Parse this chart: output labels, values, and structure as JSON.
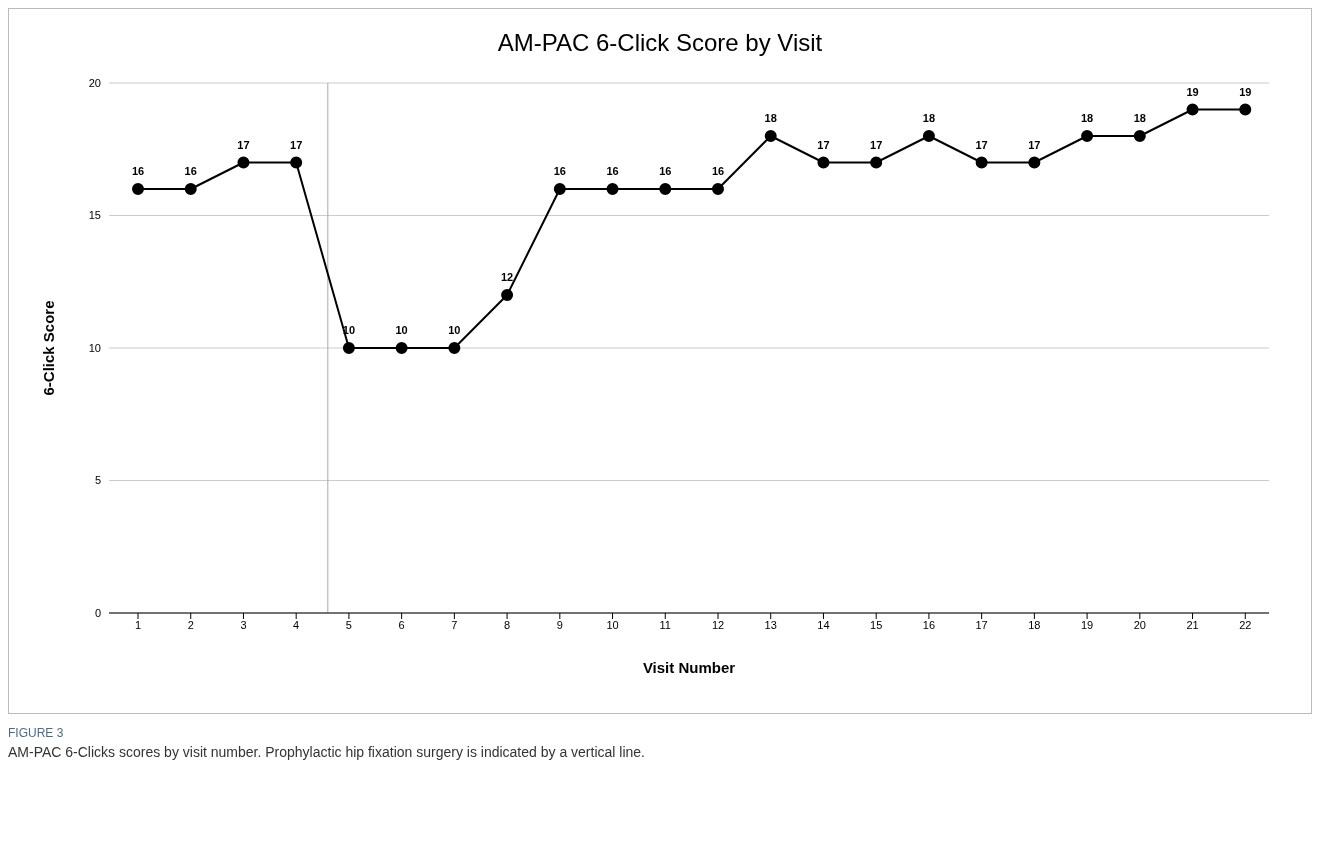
{
  "chart_data": {
    "type": "line",
    "title": "AM-PAC 6-Click Score by Visit",
    "xlabel": "Visit Number",
    "ylabel": "6-Click Score",
    "x": [
      1,
      2,
      3,
      4,
      5,
      6,
      7,
      8,
      9,
      10,
      11,
      12,
      13,
      14,
      15,
      16,
      17,
      18,
      19,
      20,
      21,
      22
    ],
    "series": [
      {
        "color": "#000000",
        "values": [
          16,
          16,
          17,
          17,
          10,
          10,
          10,
          12,
          16,
          16,
          16,
          16,
          18,
          17,
          17,
          18,
          17,
          17,
          18,
          18,
          19,
          19
        ]
      }
    ],
    "xlim": [
      0.45,
      22.45
    ],
    "xticks": [
      1,
      2,
      3,
      4,
      5,
      6,
      7,
      8,
      9,
      10,
      11,
      12,
      13,
      14,
      15,
      16,
      17,
      18,
      19,
      20,
      21,
      22
    ],
    "ylim": [
      0,
      20
    ],
    "yticks": [
      0,
      5,
      10,
      15,
      20
    ],
    "grid": "y",
    "marker": "circle",
    "line_style": "solid",
    "data_labels": true,
    "ref_lines": [
      {
        "axis": "x",
        "value": 4.6,
        "color": "#aaaaaa"
      }
    ],
    "annotations": [
      "FIGURE 3",
      "AM-PAC 6-Clicks scores by visit number. Prophylactic hip fixation surgery is indicated by a vertical line."
    ]
  }
}
